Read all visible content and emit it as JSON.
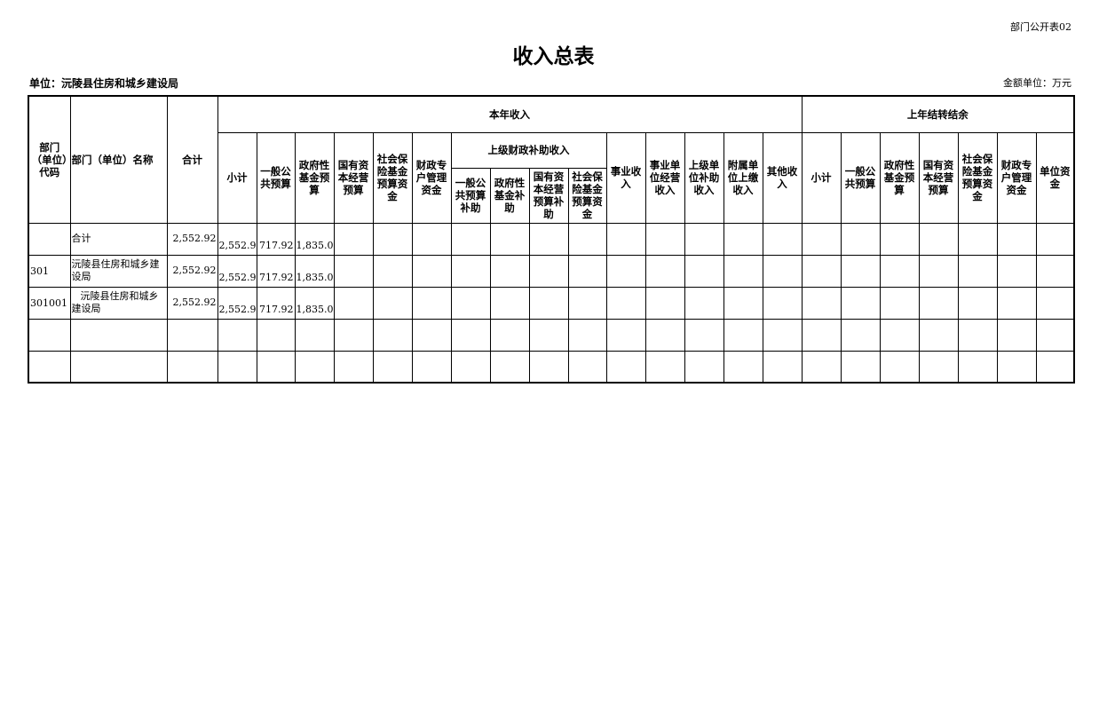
{
  "form_no": "部门公开表02",
  "title": "收入总表",
  "unit": "单位：沅陵县住房和城乡建设局",
  "money_unit": "金额单位：万元",
  "headers": {
    "code": "部门（单位）代码",
    "name": "部门（单位）名称",
    "total": "合计",
    "current_year": "本年收入",
    "prior_year": "上年结转结余",
    "subtotal": "小计",
    "general_budget": "一般公共预算",
    "gov_fund": "政府性基金预算",
    "state_capital": "国有资本经营预算",
    "social_insurance": "社会保险基金预算资金",
    "fiscal_account": "财政专户管理资金",
    "superior_subsidy": "上级财政补助收入",
    "sub_general": "一般公共预算补助",
    "sub_gov_fund": "政府性基金补助",
    "sub_state_capital": "国有资本经营预算补助",
    "sub_social": "社会保险基金预算资金",
    "business_income": "事业收入",
    "business_operating": "事业单位经营收入",
    "superior_unit_subsidy": "上级单位补助收入",
    "affiliated_remit": "附属单位上缴收入",
    "other_income": "其他收入",
    "prior_subtotal": "小计",
    "prior_general": "一般公共预算",
    "prior_gov_fund": "政府性基金预算",
    "prior_state_capital": "国有资本经营预算",
    "prior_social": "社会保险基金预算资金",
    "prior_fiscal_account": "财政专户管理资金",
    "prior_unit_funds": "单位资金"
  },
  "rows": [
    {
      "code": "",
      "name": "合计",
      "total": "2,552.92",
      "values": [
        "2,552.92",
        "717.92",
        "1,835.00",
        "",
        "",
        "",
        "",
        "",
        "",
        "",
        "",
        "",
        "",
        "",
        "",
        "",
        "",
        "",
        "",
        "",
        "",
        ""
      ]
    },
    {
      "code": "301",
      "name": "沅陵县住房和城乡建设局",
      "total": "2,552.92",
      "values": [
        "2,552.92",
        "717.92",
        "1,835.00",
        "",
        "",
        "",
        "",
        "",
        "",
        "",
        "",
        "",
        "",
        "",
        "",
        "",
        "",
        "",
        "",
        "",
        "",
        ""
      ]
    },
    {
      "code": "301001",
      "name": "沅陵县住房和城乡建设局",
      "total": "2,552.92",
      "values": [
        "2,552.92",
        "717.92",
        "1,835.00",
        "",
        "",
        "",
        "",
        "",
        "",
        "",
        "",
        "",
        "",
        "",
        "",
        "",
        "",
        "",
        "",
        "",
        "",
        ""
      ]
    },
    {
      "code": "",
      "name": "",
      "total": "",
      "values": [
        "",
        "",
        "",
        "",
        "",
        "",
        "",
        "",
        "",
        "",
        "",
        "",
        "",
        "",
        "",
        "",
        "",
        "",
        "",
        "",
        "",
        ""
      ]
    },
    {
      "code": "",
      "name": "",
      "total": "",
      "values": [
        "",
        "",
        "",
        "",
        "",
        "",
        "",
        "",
        "",
        "",
        "",
        "",
        "",
        "",
        "",
        "",
        "",
        "",
        "",
        "",
        "",
        ""
      ]
    }
  ]
}
